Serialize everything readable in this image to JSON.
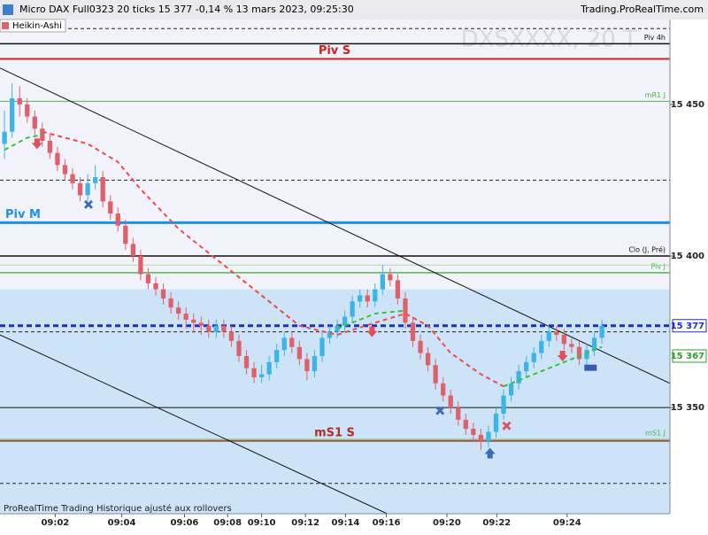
{
  "header": {
    "title": "Micro DAX Full0323 20 ticks 15 377 -0,14 % 13 mars 2023, 09:25:30",
    "site": "Trading.ProRealTime.com",
    "mode": "Heikin-Ashi",
    "watermark": "DXSXXXX, 20 T"
  },
  "footer": "ProRealTime Trading  Historique ajusté aux rollovers",
  "chart_data": {
    "type": "candlestick",
    "ylim": [
      15315,
      15478
    ],
    "xlim": [
      -0.6,
      88
    ],
    "yticks": [
      {
        "value": 15350,
        "label": "15 350"
      },
      {
        "value": 15400,
        "label": "15 400"
      },
      {
        "value": 15450,
        "label": "15 450"
      }
    ],
    "xticks": [
      {
        "value": 6.7,
        "label": "09:02"
      },
      {
        "value": 15.5,
        "label": "09:04"
      },
      {
        "value": 23.8,
        "label": "09:06"
      },
      {
        "value": 29.5,
        "label": "09:08"
      },
      {
        "value": 34,
        "label": "09:10"
      },
      {
        "value": 39.8,
        "label": "09:12"
      },
      {
        "value": 45.1,
        "label": "09:14"
      },
      {
        "value": 50.5,
        "label": "09:16"
      },
      {
        "value": 58.5,
        "label": "09:20"
      },
      {
        "value": 65.1,
        "label": "09:22"
      },
      {
        "value": 74.4,
        "label": "09:24"
      }
    ],
    "up_color": "#3cb4e6",
    "down_color": "#e0606a",
    "zone_split": 15389,
    "upper_zone_color": "#f2f2fb",
    "lower_zone_color": "#cde3f7",
    "open": [
      15437,
      15441,
      15452,
      15450,
      15446,
      15442,
      15438,
      15434,
      15430,
      15427,
      15424,
      15420,
      15424,
      15426,
      15418,
      15414,
      15410,
      15404,
      15400,
      15394,
      15391,
      15389,
      15386,
      15383,
      15381,
      15379,
      15378,
      15377,
      15375,
      15377,
      15375,
      15372,
      15367,
      15363,
      15360,
      15361,
      15365,
      15369,
      15373,
      15370,
      15366,
      15362,
      15367,
      15373,
      15375,
      15377,
      15380,
      15385,
      15387,
      15385,
      15389,
      15394,
      15392,
      15386,
      15378,
      15372,
      15368,
      15364,
      15358,
      15354,
      15350,
      15346,
      15343,
      15341,
      15339,
      15342,
      15348,
      15354,
      15358,
      15362,
      15365,
      15368,
      15372,
      15375,
      15374,
      15371,
      15370,
      15366,
      15369,
      15373
    ],
    "high": [
      15448,
      15457,
      15456,
      15452,
      15448,
      15444,
      15440,
      15436,
      15432,
      15429,
      15426,
      15427,
      15430,
      15428,
      15420,
      15416,
      15412,
      15406,
      15402,
      15396,
      15393,
      15391,
      15388,
      15385,
      15383,
      15381,
      15380,
      15379,
      15379,
      15379,
      15377,
      15374,
      15369,
      15365,
      15364,
      15367,
      15371,
      15375,
      15375,
      15372,
      15368,
      15369,
      15375,
      15377,
      15379,
      15382,
      15387,
      15389,
      15389,
      15391,
      15397,
      15396,
      15394,
      15388,
      15380,
      15374,
      15370,
      15366,
      15360,
      15356,
      15352,
      15348,
      15345,
      15343,
      15344,
      15350,
      15356,
      15360,
      15364,
      15367,
      15370,
      15374,
      15377,
      15377,
      15376,
      15373,
      15372,
      15371,
      15375,
      15379
    ],
    "low": [
      15432,
      15439,
      15446,
      15444,
      15440,
      15436,
      15432,
      15428,
      15425,
      15422,
      15418,
      15418,
      15422,
      15416,
      15412,
      15408,
      15402,
      15398,
      15392,
      15389,
      15387,
      15384,
      15381,
      15379,
      15376,
      15375,
      15374,
      15373,
      15373,
      15373,
      15370,
      15365,
      15361,
      15358,
      15358,
      15359,
      15363,
      15367,
      15368,
      15364,
      15359,
      15360,
      15365,
      15371,
      15373,
      15375,
      15378,
      15383,
      15383,
      15383,
      15387,
      15390,
      15384,
      15376,
      15370,
      15366,
      15362,
      15356,
      15352,
      15348,
      15344,
      15341,
      15339,
      15336,
      15337,
      15340,
      15346,
      15352,
      15356,
      15360,
      15363,
      15366,
      15370,
      15372,
      15369,
      15368,
      15364,
      15364,
      15367,
      15371
    ],
    "close": [
      15441,
      15452,
      15450,
      15446,
      15442,
      15438,
      15434,
      15430,
      15427,
      15424,
      15420,
      15424,
      15426,
      15418,
      15414,
      15410,
      15404,
      15400,
      15394,
      15391,
      15389,
      15386,
      15383,
      15381,
      15379,
      15378,
      15377,
      15375,
      15377,
      15375,
      15372,
      15367,
      15363,
      15360,
      15361,
      15365,
      15369,
      15373,
      15370,
      15366,
      15362,
      15367,
      15373,
      15375,
      15377,
      15380,
      15385,
      15387,
      15385,
      15389,
      15394,
      15392,
      15386,
      15378,
      15372,
      15368,
      15364,
      15358,
      15354,
      15350,
      15346,
      15343,
      15341,
      15339,
      15342,
      15348,
      15354,
      15358,
      15362,
      15365,
      15368,
      15372,
      15375,
      15374,
      15371,
      15370,
      15366,
      15369,
      15373,
      15377
    ],
    "averages": [
      {
        "color": "#f04a4a",
        "x": [
          5,
          11,
          15,
          18,
          23,
          29,
          35,
          39,
          44,
          49,
          53,
          56,
          59,
          63,
          66
        ],
        "values": [
          15441,
          15437,
          15431,
          15422,
          15409,
          15397,
          15385,
          15377,
          15374,
          15378,
          15381,
          15377,
          15368,
          15361,
          15357
        ]
      },
      {
        "color": "#39c03c",
        "x": [
          0,
          3,
          5,
          6,
          44,
          49,
          53,
          54,
          66,
          70,
          74,
          77,
          79
        ],
        "values": [
          15435,
          15439,
          15440,
          null,
          15376,
          15381,
          15382,
          null,
          15357,
          15361,
          15365,
          15368,
          15370
        ]
      }
    ],
    "trendlines": [
      {
        "x": [
          -0.6,
          88
        ],
        "values": [
          15462,
          15358
        ]
      },
      {
        "x": [
          -0.6,
          50.6
        ],
        "values": [
          15374,
          15315
        ]
      }
    ],
    "levels": [
      {
        "price": 15475,
        "color": "#222",
        "width": 1,
        "dash": "4 3"
      },
      {
        "price": 15470,
        "color": "#111",
        "width": 1.5,
        "label": "Piv 4h",
        "align": "right"
      },
      {
        "price": 15465,
        "color": "#d42020",
        "width": 2,
        "label": "Piv S",
        "align": "center"
      },
      {
        "price": 15451,
        "color": "#4cb84c",
        "width": 1,
        "label": "mR1 J",
        "align": "right"
      },
      {
        "price": 15425,
        "color": "#222",
        "width": 1,
        "dash": "4 3"
      },
      {
        "price": 15411,
        "color": "#1e90e0",
        "width": 3,
        "label": "Piv M",
        "align": "left"
      },
      {
        "price": 15400,
        "color": "#111",
        "width": 1.5,
        "label": "Clo (J, Pré)",
        "align": "right"
      },
      {
        "price": 15397,
        "color": "#a8dca8",
        "width": 1
      },
      {
        "price": 15394.5,
        "color": "#4cb84c",
        "width": 1.5,
        "label": "Piv J",
        "align": "right"
      },
      {
        "price": 15377,
        "color": "#1a2fc8",
        "width": 3,
        "dash": "6 4"
      },
      {
        "price": 15375,
        "color": "#222",
        "width": 1,
        "dash": "4 3"
      },
      {
        "price": 15350,
        "color": "#111",
        "width": 1
      },
      {
        "price": 15339.5,
        "color": "#4cb84c",
        "width": 1,
        "label": "mS1 J",
        "align": "right"
      },
      {
        "price": 15339,
        "color": "#b03020",
        "width": 1.5,
        "label": "mS1 S",
        "align": "center"
      },
      {
        "price": 15325,
        "color": "#222",
        "width": 1,
        "dash": "4 3"
      }
    ],
    "signals": [
      {
        "kind": "down",
        "color": "#e0505a",
        "x": 4.3,
        "price": 15437
      },
      {
        "kind": "x",
        "color": "#3a6ab8",
        "x": 11.1,
        "price": 15417
      },
      {
        "kind": "down",
        "color": "#e0505a",
        "x": 48.6,
        "price": 15375
      },
      {
        "kind": "x",
        "color": "#3a6ab8",
        "x": 57.6,
        "price": 15349
      },
      {
        "kind": "up",
        "color": "#3a6ab8",
        "x": 64.2,
        "price": 15335
      },
      {
        "kind": "x",
        "color": "#e0505a",
        "x": 66.4,
        "price": 15344
      },
      {
        "kind": "down",
        "color": "#e0505a",
        "x": 73.8,
        "price": 15367
      },
      {
        "kind": "rect",
        "color": "#3a5ab0",
        "x": 77.5,
        "price": 15363
      }
    ],
    "price_tags": [
      {
        "value": 15377,
        "label": "15 377",
        "color": "#1a2fc8"
      },
      {
        "value": 15367,
        "label": "15 367",
        "color": "#2ca02c"
      }
    ]
  }
}
